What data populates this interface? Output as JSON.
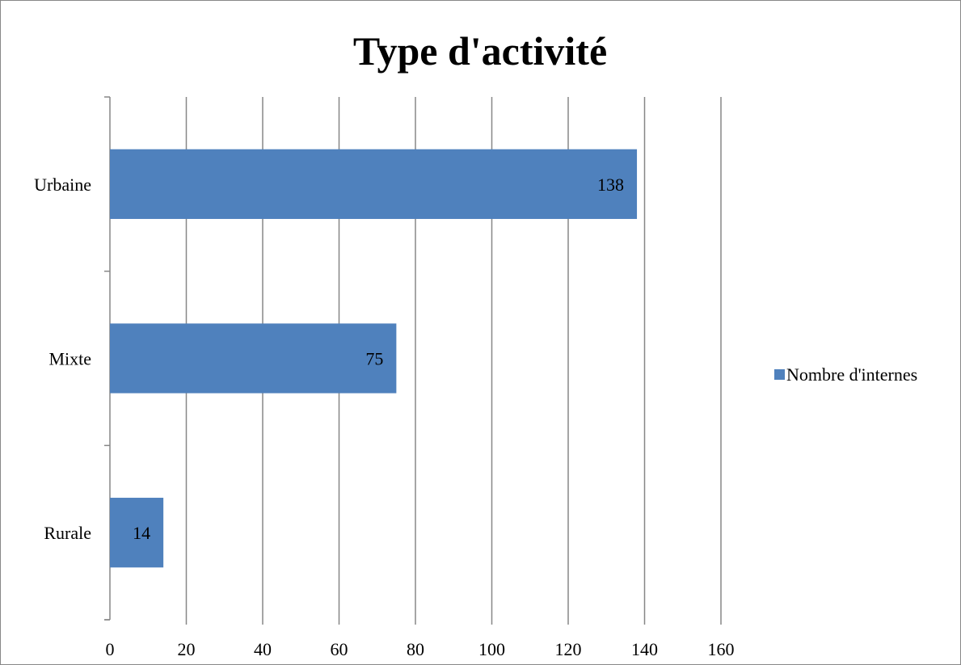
{
  "chart_data": {
    "type": "bar",
    "orientation": "horizontal",
    "title": "Type d'activité",
    "categories": [
      "Urbaine",
      "Mixte",
      "Rurale"
    ],
    "series": [
      {
        "name": "Nombre d'internes",
        "values": [
          138,
          75,
          14
        ]
      }
    ],
    "data_labels": [
      "138",
      "75",
      "14"
    ],
    "xlim": [
      0,
      160
    ],
    "x_ticks": [
      "0",
      "20",
      "40",
      "60",
      "80",
      "100",
      "120",
      "140",
      "160"
    ],
    "grid": "vertical",
    "legend_position": "right",
    "colors": {
      "bar": "#4f81bd",
      "grid": "#878787",
      "axis": "#878787",
      "border": "#878787"
    }
  }
}
